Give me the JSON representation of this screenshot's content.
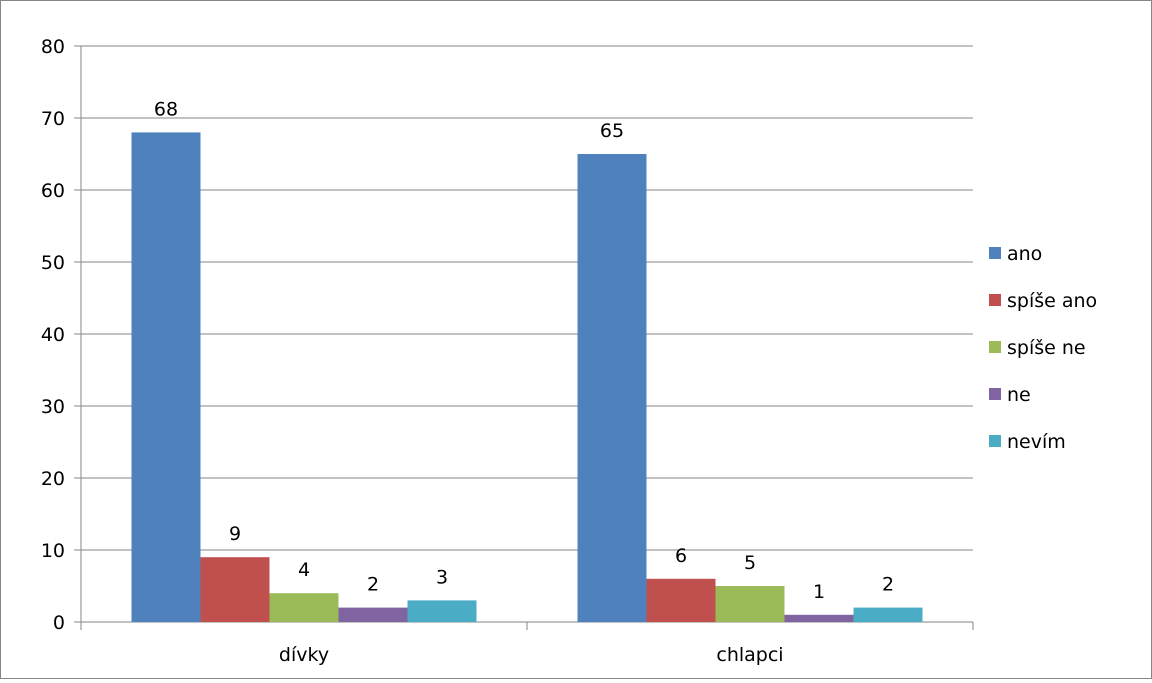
{
  "chart_data": {
    "type": "bar",
    "categories": [
      "dívky",
      "chlapci"
    ],
    "series": [
      {
        "name": "ano",
        "values": [
          68,
          65
        ],
        "color": "#4F81BD"
      },
      {
        "name": "spíše ano",
        "values": [
          9,
          6
        ],
        "color": "#C0504D"
      },
      {
        "name": "spíše ne",
        "values": [
          4,
          5
        ],
        "color": "#9BBB59"
      },
      {
        "name": "ne",
        "values": [
          2,
          1
        ],
        "color": "#8064A2"
      },
      {
        "name": "nevím",
        "values": [
          3,
          2
        ],
        "color": "#4BACC6"
      }
    ],
    "ylim": [
      0,
      80
    ],
    "yticks": [
      0,
      10,
      20,
      30,
      40,
      50,
      60,
      70,
      80
    ],
    "title": "",
    "xlabel": "",
    "ylabel": "",
    "grid": true,
    "legend": "right",
    "data_labels": true
  }
}
